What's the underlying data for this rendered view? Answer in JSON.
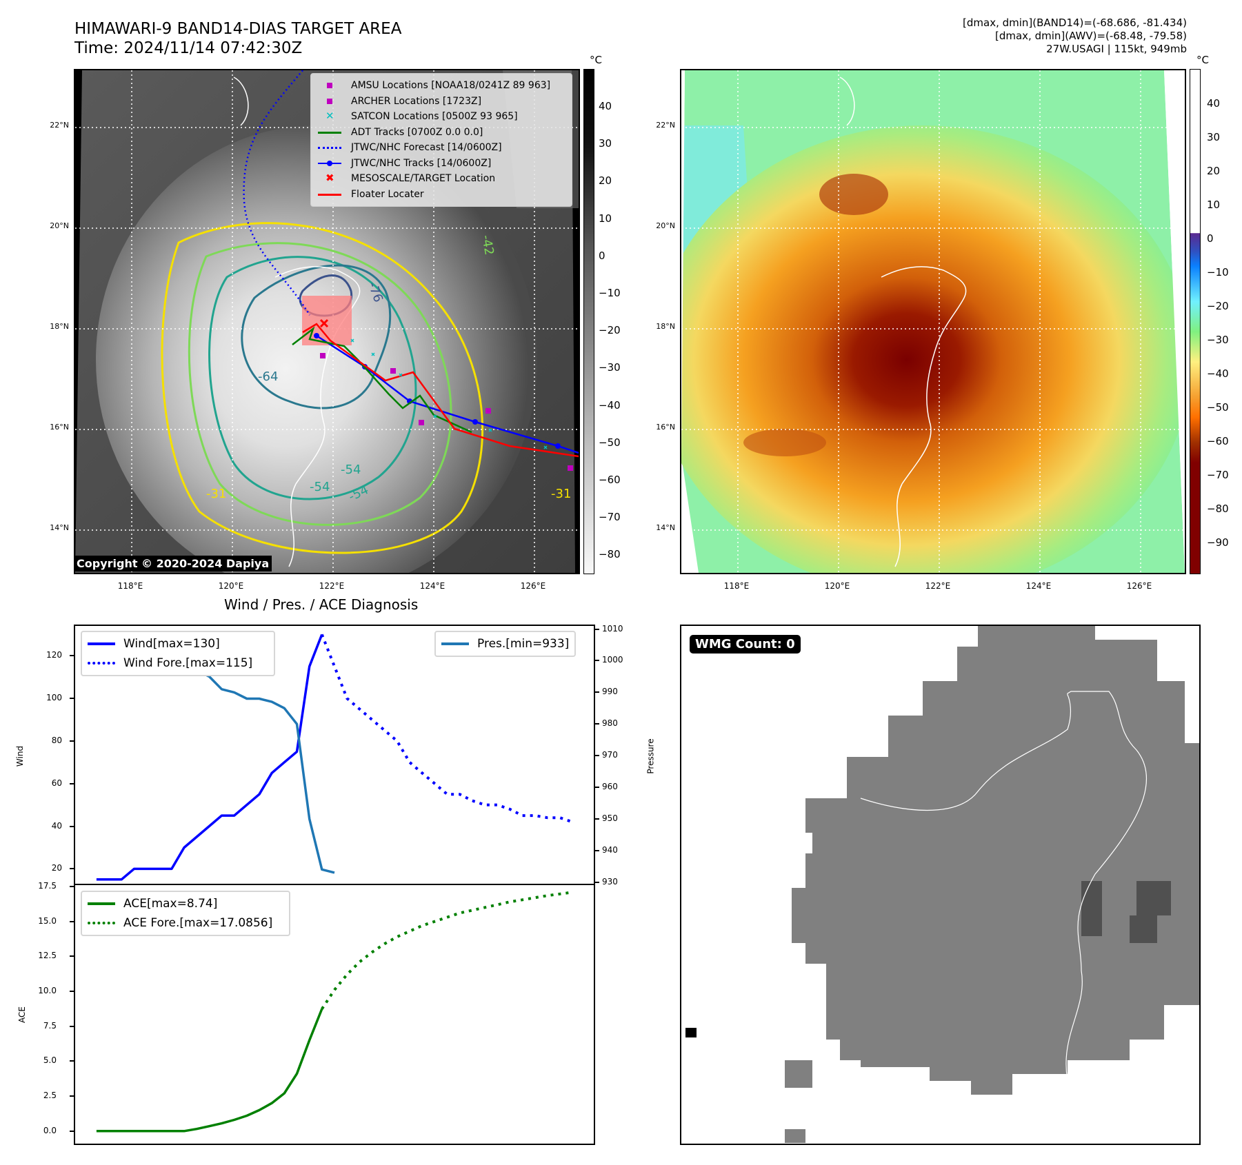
{
  "header": {
    "title_line1": "HIMAWARI-9 BAND14-DIAS TARGET AREA",
    "title_line2": "Time: 2024/11/14 07:42:30Z",
    "right_line1": "[dmax, dmin](BAND14)=(-68.686, -81.434)",
    "right_line2": "[dmax, dmin](AWV)=(-68.48, -79.58)",
    "right_line3": "27W.USAGI | 115kt, 949mb"
  },
  "map_left": {
    "lat_labels": [
      "22°N",
      "20°N",
      "18°N",
      "16°N",
      "14°N"
    ],
    "lon_labels": [
      "118°E",
      "120°E",
      "122°E",
      "124°E",
      "126°E"
    ],
    "colorbar": {
      "unit": "°C",
      "ticks": [
        "40",
        "30",
        "20",
        "10",
        "0",
        "−10",
        "−20",
        "−30",
        "−40",
        "−50",
        "−60",
        "−70",
        "−80"
      ]
    },
    "legend": [
      {
        "label": "AMSU Locations [NOAA18/0241Z 89 963]",
        "symbol": "square",
        "color": "#bf00bf"
      },
      {
        "label": "ARCHER Locations [1723Z]",
        "symbol": "square",
        "color": "#bf00bf"
      },
      {
        "label": "SATCON Locations [0500Z 93 965]",
        "symbol": "x",
        "color": "#00bfbf"
      },
      {
        "label": "ADT Tracks [0700Z 0.0 0.0]",
        "symbol": "line",
        "color": "#008000"
      },
      {
        "label": "JTWC/NHC Forecast [14/0600Z]",
        "symbol": "dotted",
        "color": "#0000ff"
      },
      {
        "label": "JTWC/NHC Tracks [14/0600Z]",
        "symbol": "line-dot",
        "color": "#0000ff"
      },
      {
        "label": "MESOSCALE/TARGET Location",
        "symbol": "x",
        "color": "#ff0000"
      },
      {
        "label": "Floater Locater",
        "symbol": "line",
        "color": "#ff0000"
      }
    ],
    "contour_labels": [
      "-76",
      "-64",
      "-54",
      "-54",
      "-54",
      "-42",
      "-31",
      "-31"
    ],
    "copyright": "Copyright © 2020-2024 Dapiya"
  },
  "map_right": {
    "lat_labels": [
      "22°N",
      "20°N",
      "18°N",
      "16°N",
      "14°N"
    ],
    "lon_labels": [
      "118°E",
      "120°E",
      "122°E",
      "124°E",
      "126°E"
    ],
    "colorbar": {
      "unit": "°C",
      "ticks": [
        "40",
        "30",
        "20",
        "10",
        "0",
        "−10",
        "−20",
        "−30",
        "−40",
        "−50",
        "−60",
        "−70",
        "−80",
        "−90"
      ]
    }
  },
  "wmg": {
    "badge": "WMG Count: 0"
  },
  "chart_data": [
    {
      "type": "line",
      "title": "Wind / Pres. / ACE Diagnosis",
      "xlabel": "",
      "ylabel": "Wind",
      "ylabel_right": "Pressure",
      "ylim": [
        13,
        134
      ],
      "ylim_right": [
        929.5,
        1011
      ],
      "yticks": [
        20,
        40,
        60,
        80,
        100,
        120
      ],
      "yticks_right": [
        930,
        940,
        950,
        960,
        970,
        980,
        990,
        1000,
        1010
      ],
      "grid": false,
      "legend_left": [
        "Wind[max=130]",
        "Wind Fore.[max=115]"
      ],
      "legend_right": [
        "Pres.[min=933]"
      ],
      "series": [
        {
          "name": "Wind[max=130]",
          "style": "solid",
          "color": "#0000ff",
          "axis": "left",
          "x": [
            0,
            1,
            2,
            3,
            4,
            5,
            6,
            7,
            8,
            9,
            10,
            11,
            12,
            13,
            14,
            15,
            16,
            17,
            18
          ],
          "values": [
            15,
            15,
            15,
            20,
            20,
            20,
            20,
            30,
            35,
            40,
            45,
            45,
            50,
            55,
            65,
            70,
            75,
            115,
            130
          ]
        },
        {
          "name": "Wind Fore.[max=115]",
          "style": "dotted",
          "color": "#0000ff",
          "axis": "left",
          "x": [
            18,
            19,
            20,
            21,
            22,
            23,
            24,
            25,
            26,
            27,
            28,
            29,
            30,
            31,
            32,
            33,
            34,
            35,
            36,
            37,
            38
          ],
          "values": [
            130,
            115,
            100,
            95,
            90,
            85,
            80,
            70,
            65,
            60,
            55,
            55,
            52,
            50,
            50,
            48,
            45,
            45,
            44,
            44,
            42
          ]
        },
        {
          "name": "Pres.[min=933]",
          "style": "solid",
          "color": "#1f77b4",
          "axis": "right",
          "x": [
            0,
            1,
            2,
            3,
            4,
            5,
            6,
            7,
            8,
            9,
            10,
            11,
            12,
            13,
            14,
            15,
            16,
            17,
            18,
            19
          ],
          "values": [
            1008,
            1008,
            1007,
            1007,
            1005,
            1004,
            1003,
            999,
            997,
            995,
            991,
            990,
            988,
            988,
            987,
            985,
            980,
            950,
            934,
            933
          ]
        }
      ]
    },
    {
      "type": "line",
      "title": "",
      "xlabel": "",
      "ylabel": "ACE",
      "ylim": [
        -0.9,
        17.6
      ],
      "yticks": [
        0.0,
        2.5,
        5.0,
        7.5,
        10.0,
        12.5,
        15.0,
        17.5
      ],
      "grid": false,
      "legend": [
        "ACE[max=8.74]",
        "ACE Fore.[max=17.0856]"
      ],
      "series": [
        {
          "name": "ACE[max=8.74]",
          "style": "solid",
          "color": "#008000",
          "x": [
            0,
            1,
            2,
            3,
            4,
            5,
            6,
            7,
            8,
            9,
            10,
            11,
            12,
            13,
            14,
            15,
            16,
            17,
            18
          ],
          "values": [
            0,
            0,
            0,
            0,
            0,
            0,
            0,
            0,
            0.15,
            0.35,
            0.55,
            0.8,
            1.1,
            1.5,
            2.0,
            2.7,
            4.1,
            6.5,
            8.74
          ]
        },
        {
          "name": "ACE Fore.[max=17.0856]",
          "style": "dotted",
          "color": "#008000",
          "x": [
            18,
            19,
            20,
            21,
            22,
            23,
            24,
            25,
            26,
            27,
            28,
            29,
            30,
            31,
            32,
            33,
            34,
            35,
            36,
            37,
            38
          ],
          "values": [
            8.74,
            10.1,
            11.2,
            12.1,
            12.8,
            13.4,
            13.9,
            14.3,
            14.7,
            15.0,
            15.3,
            15.6,
            15.8,
            16.0,
            16.2,
            16.4,
            16.55,
            16.7,
            16.85,
            16.97,
            17.0856
          ]
        }
      ]
    }
  ]
}
